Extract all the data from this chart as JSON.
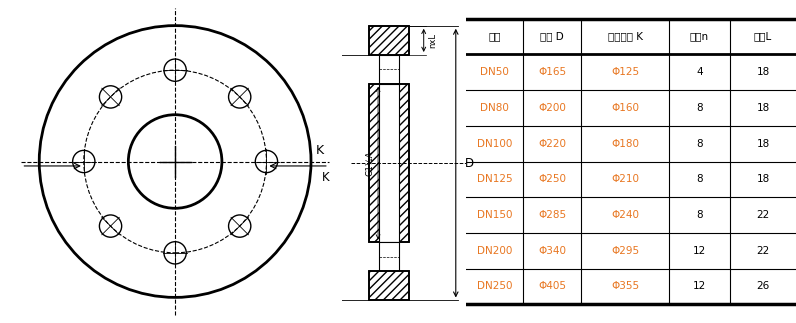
{
  "table_headers": [
    "规格",
    "外径 D",
    "中心孔距 K",
    "孔数n",
    "孔径L"
  ],
  "table_data": [
    [
      "DN50",
      "Φ165",
      "Φ125",
      "4",
      "18"
    ],
    [
      "DN80",
      "Φ200",
      "Φ160",
      "8",
      "18"
    ],
    [
      "DN100",
      "Φ220",
      "Φ180",
      "8",
      "18"
    ],
    [
      "DN125",
      "Φ250",
      "Φ210",
      "8",
      "18"
    ],
    [
      "DN150",
      "Φ285",
      "Φ240",
      "8",
      "22"
    ],
    [
      "DN200",
      "Φ340",
      "Φ295",
      "12",
      "22"
    ],
    [
      "DN250",
      "Φ405",
      "Φ355",
      "12",
      "26"
    ]
  ],
  "header_text_color": "#000000",
  "data_col0_color": "#e87722",
  "data_col1_color": "#e87722",
  "data_col2_color": "#e87722",
  "data_col3_color": "#000000",
  "data_col4_color": "#000000",
  "bg_white": "#ffffff",
  "line_color": "#000000"
}
